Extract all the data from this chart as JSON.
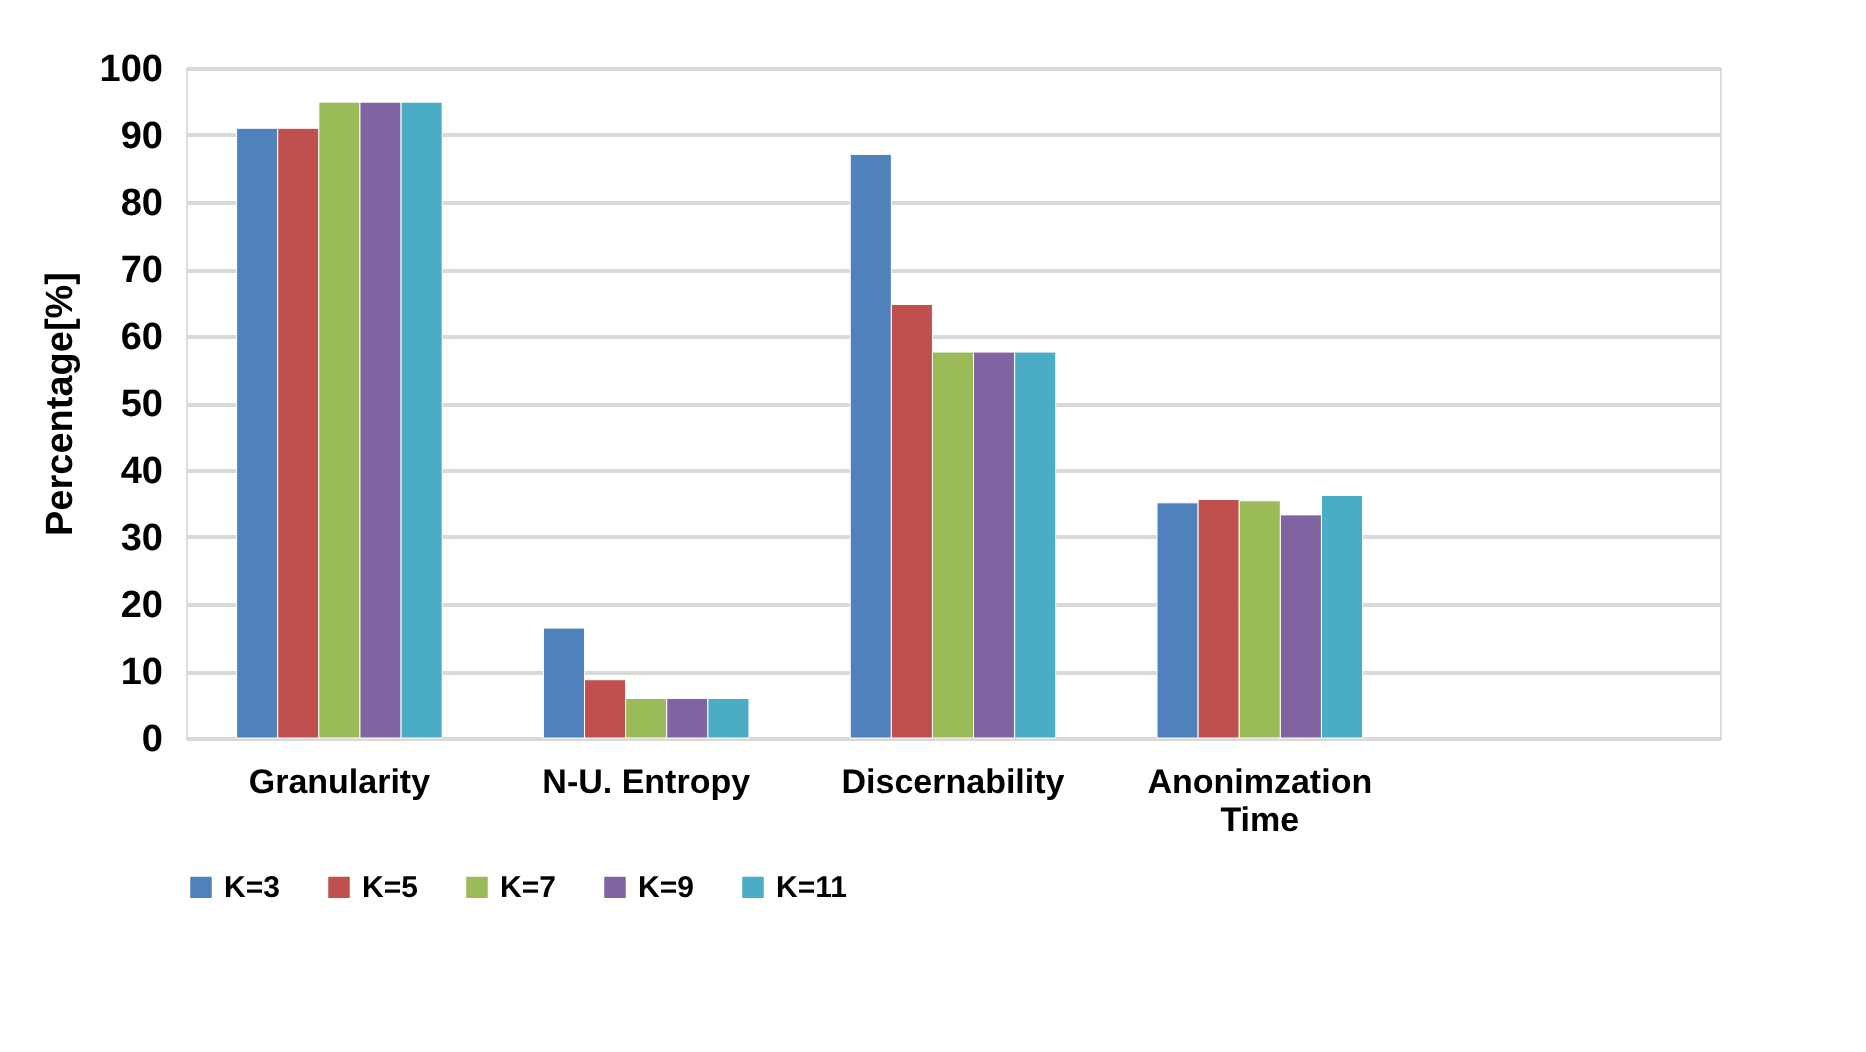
{
  "chart_data": {
    "type": "bar",
    "ylabel": "Percentage[%]",
    "categories": [
      "Granularity",
      "N-U. Entropy",
      "Discernability",
      "Anonimzation Time",
      null
    ],
    "series": [
      {
        "name": "K=3",
        "color": "#4f81bd",
        "values": [
          91.0,
          16.4,
          87.1,
          35.1,
          null
        ]
      },
      {
        "name": "K=5",
        "color": "#c0504d",
        "values": [
          91.0,
          8.7,
          64.7,
          35.6,
          null
        ]
      },
      {
        "name": "K=7",
        "color": "#9bbb59",
        "values": [
          94.9,
          5.9,
          57.6,
          35.4,
          null
        ]
      },
      {
        "name": "K=9",
        "color": "#8064a2",
        "values": [
          94.9,
          5.9,
          57.6,
          33.3,
          null
        ]
      },
      {
        "name": "K=11",
        "color": "#4bacc6",
        "values": [
          94.9,
          5.9,
          57.6,
          36.2,
          null
        ]
      }
    ],
    "ylim": [
      0,
      100
    ],
    "yticks": [
      0,
      10,
      20,
      30,
      40,
      50,
      60,
      70,
      80,
      90,
      100
    ],
    "grid": "y",
    "legend": "bottom"
  }
}
